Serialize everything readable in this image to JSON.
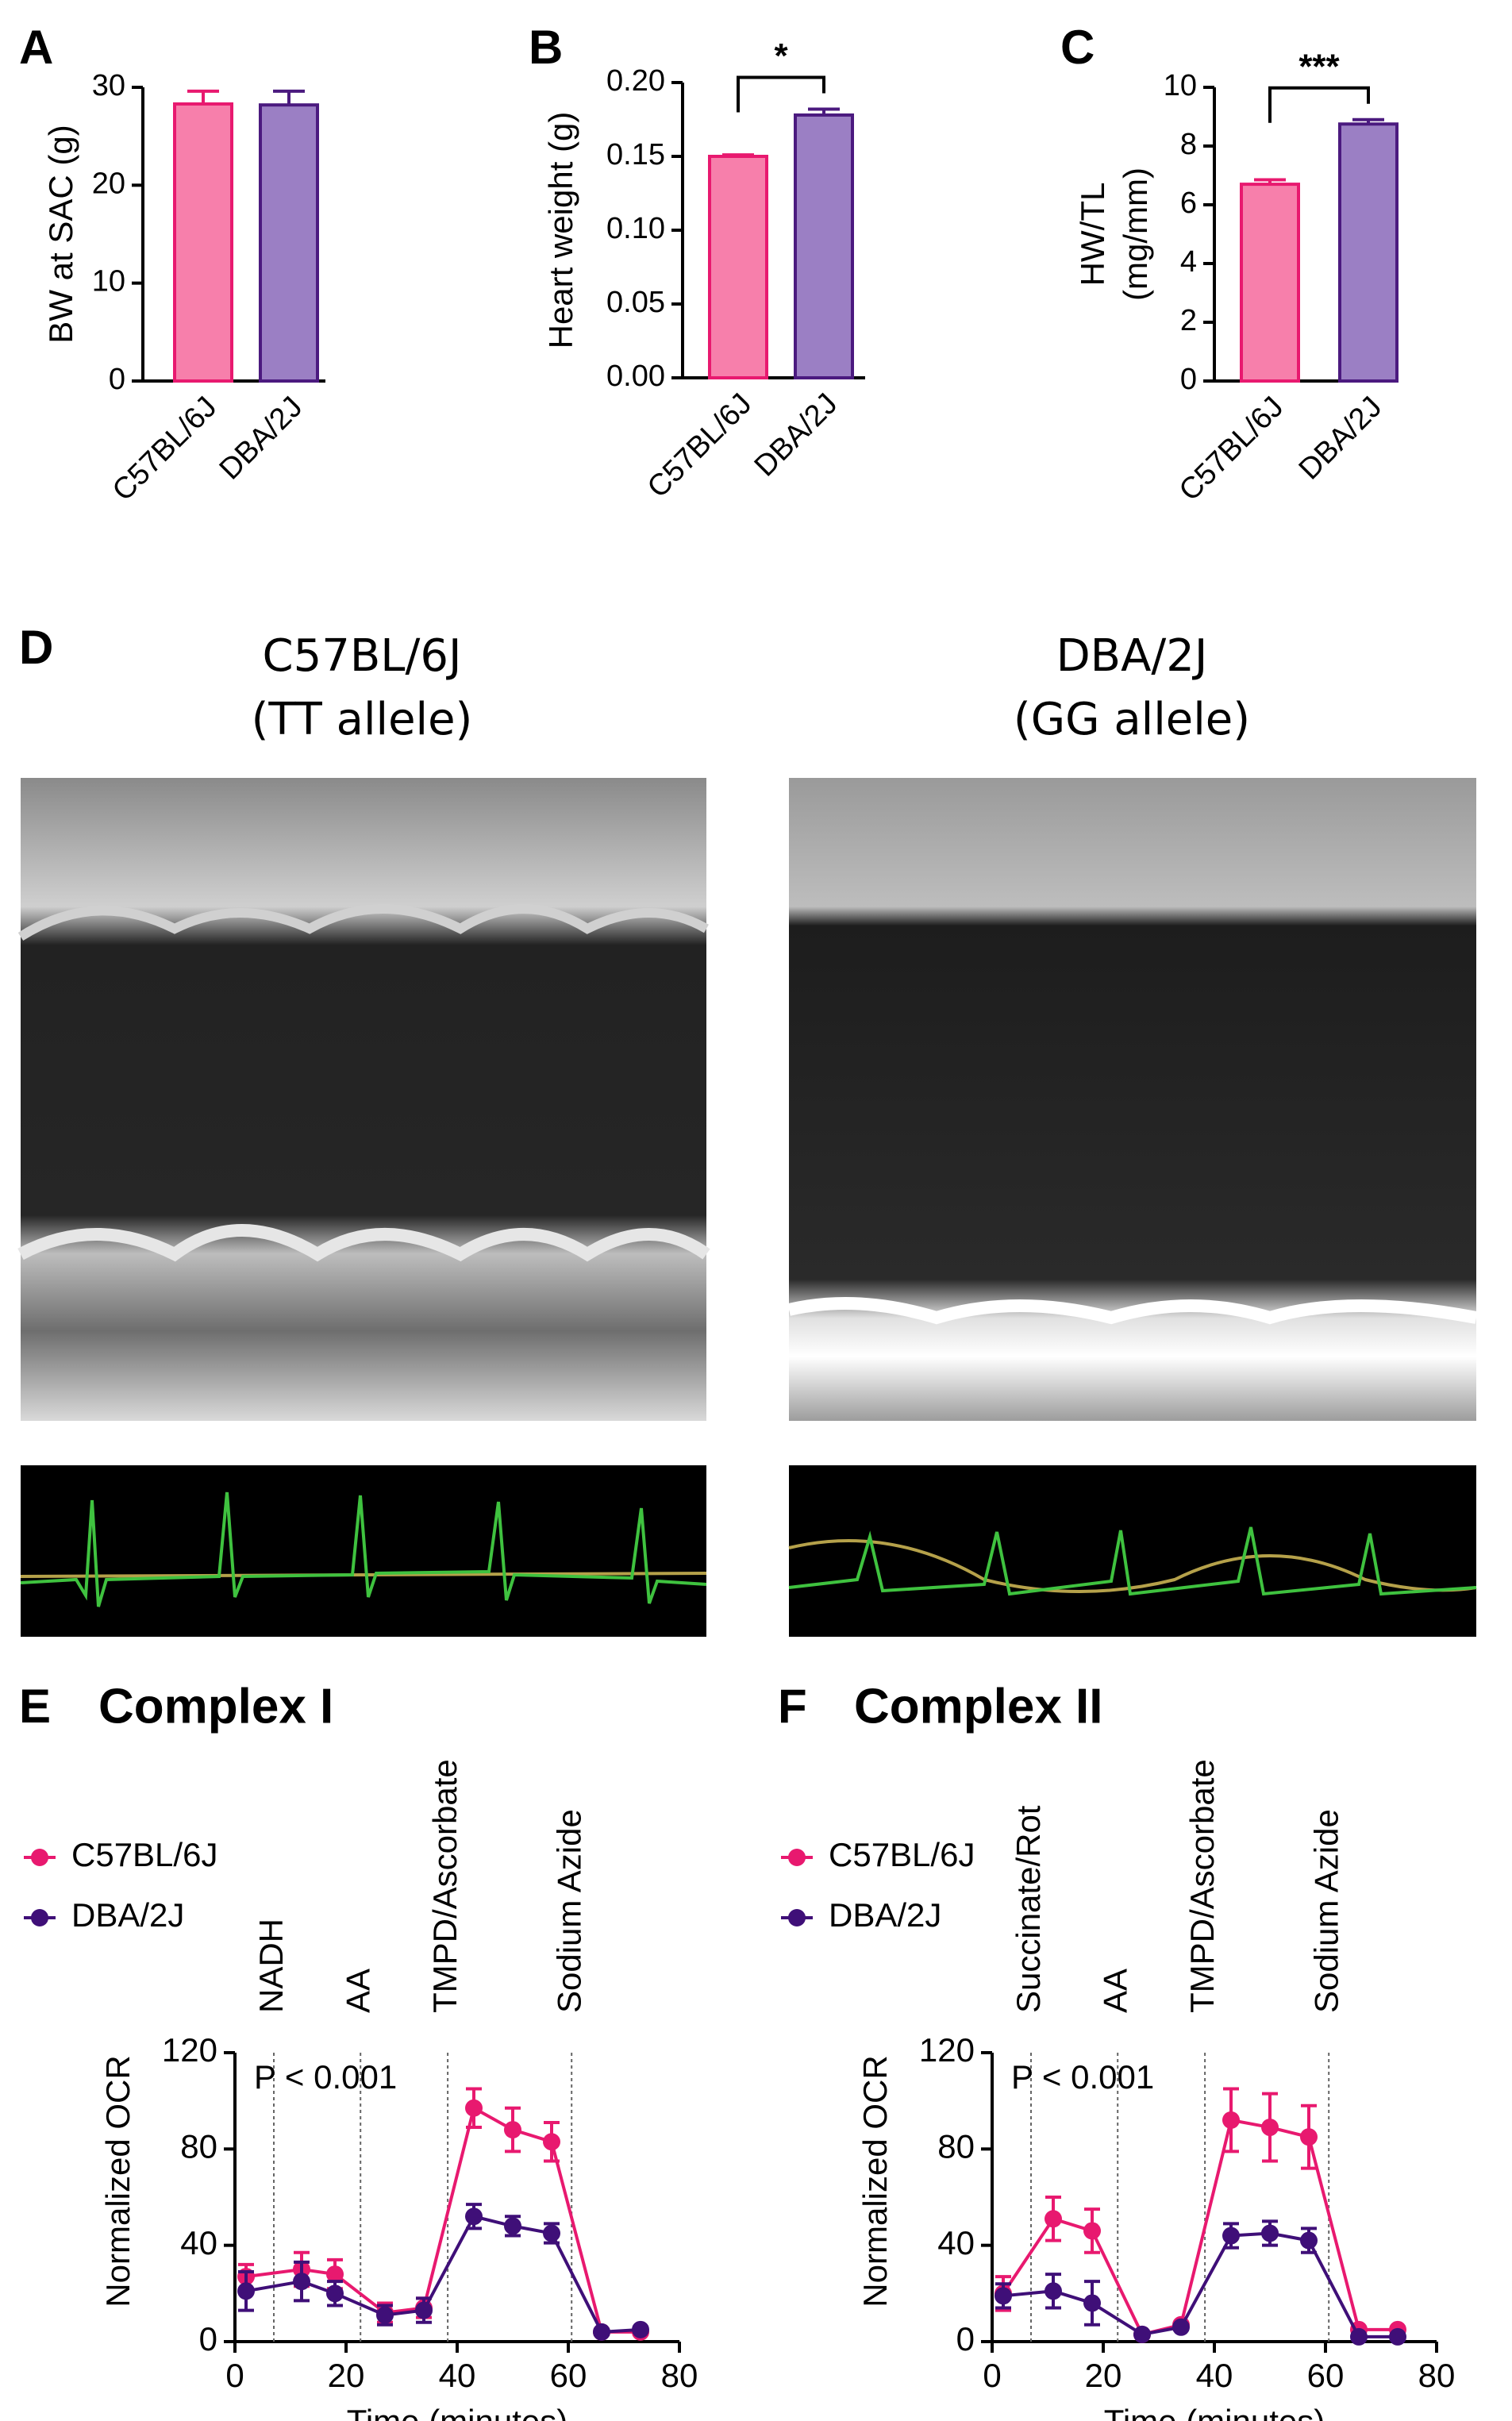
{
  "chart_data": [
    {
      "type": "bar",
      "panel": "A",
      "ylabel": "BW at SAC (g)",
      "categories": [
        "C57BL/6J",
        "DBA/2J"
      ],
      "values": [
        28.3,
        28.2
      ],
      "errors": [
        1.3,
        1.4
      ],
      "colors": [
        "#f77fab",
        "#9b7fc4"
      ],
      "edge_colors": [
        "#e8196f",
        "#4b1a7f"
      ],
      "ylim": [
        0,
        30
      ],
      "yticks": [
        0,
        10,
        20,
        30
      ]
    },
    {
      "type": "bar",
      "panel": "B",
      "ylabel": "Heart weight (g)",
      "categories": [
        "C57BL/6J",
        "DBA/2J"
      ],
      "values": [
        0.15,
        0.178
      ],
      "errors": [
        0.001,
        0.004
      ],
      "colors": [
        "#f77fab",
        "#9b7fc4"
      ],
      "edge_colors": [
        "#e8196f",
        "#4b1a7f"
      ],
      "ylim": [
        0,
        0.2
      ],
      "yticks": [
        {
          "value": 0,
          "label": "0.00"
        },
        0.05,
        {
          "value": 0.1,
          "label": "0.10"
        },
        0.15,
        {
          "value": 0.2,
          "label": "0.20"
        }
      ],
      "significance": "*"
    },
    {
      "type": "bar",
      "panel": "C",
      "ylabel": [
        "HW/TL",
        "(mg/mm)"
      ],
      "categories": [
        "C57BL/6J",
        "DBA/2J"
      ],
      "values": [
        6.7,
        8.75
      ],
      "errors": [
        0.15,
        0.15
      ],
      "colors": [
        "#f77fab",
        "#9b7fc4"
      ],
      "edge_colors": [
        "#e8196f",
        "#4b1a7f"
      ],
      "ylim": [
        0,
        10
      ],
      "yticks": [
        0,
        2,
        4,
        6,
        8,
        10
      ],
      "significance": "***"
    },
    {
      "type": "line",
      "panel": "E",
      "title": "Complex I",
      "annotation": "P < 0.001",
      "xlabel": "Time (minutes)",
      "ylabel": "Normalized OCR",
      "x": [
        2,
        12,
        18,
        27,
        34,
        43,
        50,
        57,
        66,
        73
      ],
      "series": [
        {
          "name": "C57BL/6J",
          "color": "#e8196f",
          "values": [
            27,
            30,
            28,
            12,
            14,
            97,
            88,
            83,
            4,
            4
          ],
          "errors": [
            5,
            7,
            6,
            4,
            4,
            8,
            9,
            8,
            1,
            1
          ]
        },
        {
          "name": "DBA/2J",
          "color": "#3f0f78",
          "values": [
            21,
            25,
            20,
            11,
            13,
            52,
            48,
            45,
            4,
            5
          ],
          "errors": [
            8,
            8,
            5,
            4,
            5,
            5,
            4,
            4,
            1,
            1
          ]
        }
      ],
      "events": [
        {
          "label": "NADH",
          "x": 7
        },
        {
          "label": "AA",
          "x": 22.6
        },
        {
          "label": "TMPD/Ascorbate",
          "x": 38.3
        },
        {
          "label": "Sodium Azide",
          "x": 60.6
        }
      ],
      "xlim": [
        0,
        80
      ],
      "xticks": [
        0,
        20,
        40,
        60,
        80
      ],
      "ylim": [
        0,
        120
      ],
      "yticks": [
        0,
        40,
        80,
        120
      ]
    },
    {
      "type": "line",
      "panel": "F",
      "title": "Complex II",
      "annotation": "P < 0.001",
      "xlabel": "Time (minutes)",
      "ylabel": "Normalized OCR",
      "x": [
        2,
        11,
        18,
        27,
        34,
        43,
        50,
        57,
        66,
        73
      ],
      "series": [
        {
          "name": "C57BL/6J",
          "color": "#e8196f",
          "values": [
            20,
            51,
            46,
            3,
            7,
            92,
            89,
            85,
            5,
            5
          ],
          "errors": [
            7,
            9,
            9,
            1,
            1,
            13,
            14,
            13,
            1,
            1
          ]
        },
        {
          "name": "DBA/2J",
          "color": "#3f0f78",
          "values": [
            19,
            21,
            16,
            3,
            6,
            44,
            45,
            42,
            2,
            2
          ],
          "errors": [
            5,
            7,
            9,
            1,
            1,
            5,
            5,
            5,
            1,
            1
          ]
        }
      ],
      "events": [
        {
          "label": "Succinate/Rot",
          "x": 7
        },
        {
          "label": "AA",
          "x": 22.6
        },
        {
          "label": "TMPD/Ascorbate",
          "x": 38.3
        },
        {
          "label": "Sodium Azide",
          "x": 60.6
        }
      ],
      "xlim": [
        0,
        80
      ],
      "xticks": [
        0,
        20,
        40,
        60,
        80
      ],
      "ylim": [
        0,
        120
      ],
      "yticks": [
        0,
        40,
        80,
        120
      ]
    }
  ],
  "panel_d": {
    "panel": "D",
    "images": [
      {
        "title": [
          "C57BL/6J",
          "(TT allele)"
        ]
      },
      {
        "title": [
          "DBA/2J",
          "(GG allele)"
        ]
      }
    ]
  }
}
